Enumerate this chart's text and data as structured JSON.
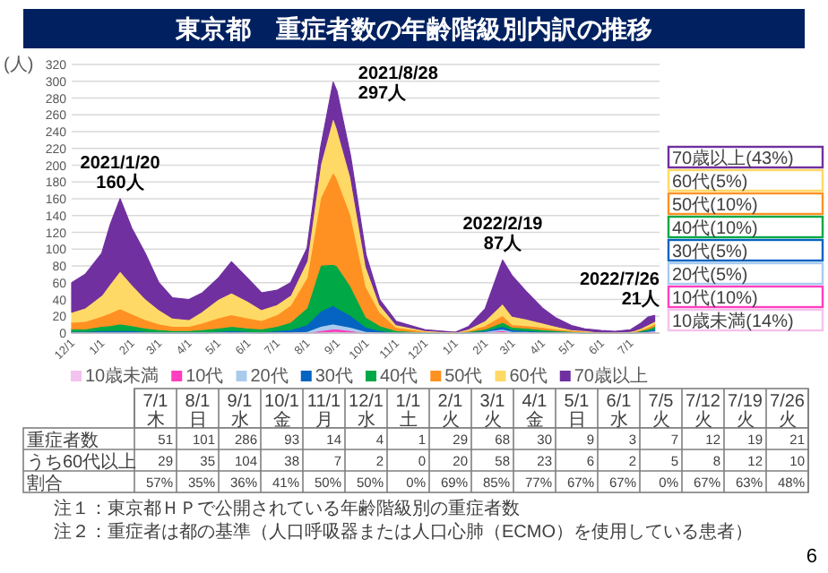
{
  "chart_data": [
    {
      "type": "area",
      "stacked": true,
      "title": "東京都　重症者数の年齢階級別内訳の推移",
      "ylabel": "(人)",
      "x": [
        "2020-12-01",
        "2020-12-15",
        "2021-01-01",
        "2021-01-10",
        "2021-01-20",
        "2021-02-01",
        "2021-02-15",
        "2021-03-01",
        "2021-03-15",
        "2021-04-01",
        "2021-04-15",
        "2021-05-01",
        "2021-05-15",
        "2021-06-01",
        "2021-06-15",
        "2021-07-01",
        "2021-07-15",
        "2021-08-01",
        "2021-08-15",
        "2021-08-28",
        "2021-09-01",
        "2021-09-15",
        "2021-10-01",
        "2021-10-15",
        "2021-11-01",
        "2021-12-01",
        "2022-01-01",
        "2022-01-15",
        "2022-02-01",
        "2022-02-19",
        "2022-03-01",
        "2022-03-15",
        "2022-04-01",
        "2022-04-15",
        "2022-05-01",
        "2022-05-15",
        "2022-06-01",
        "2022-06-15",
        "2022-07-01",
        "2022-07-05",
        "2022-07-12",
        "2022-07-19",
        "2022-07-26"
      ],
      "series": [
        {
          "name": "10歳未満",
          "color": "#f4c2ee",
          "values": [
            0,
            0,
            0,
            0,
            0,
            0,
            0,
            0,
            0,
            0,
            0,
            0,
            0,
            0,
            0,
            0,
            0,
            0,
            1,
            2,
            2,
            1,
            0,
            0,
            0,
            0,
            0,
            0,
            1,
            2,
            1,
            1,
            1,
            1,
            1,
            0,
            0,
            0,
            0,
            0,
            0,
            0,
            1
          ]
        },
        {
          "name": "10代",
          "color": "#ff3fbf",
          "values": [
            0,
            0,
            0,
            0,
            0,
            0,
            0,
            0,
            0,
            0,
            0,
            0,
            0,
            0,
            0,
            0,
            0,
            0,
            2,
            3,
            3,
            2,
            0,
            0,
            0,
            0,
            0,
            0,
            0,
            1,
            0,
            0,
            0,
            0,
            0,
            0,
            0,
            0,
            0,
            0,
            0,
            1,
            1
          ]
        },
        {
          "name": "20代",
          "color": "#a9cbee",
          "values": [
            1,
            1,
            1,
            1,
            1,
            1,
            1,
            0,
            0,
            0,
            0,
            1,
            1,
            1,
            0,
            1,
            1,
            2,
            5,
            6,
            5,
            4,
            2,
            1,
            0,
            0,
            0,
            0,
            1,
            2,
            1,
            1,
            0,
            0,
            0,
            0,
            0,
            0,
            0,
            0,
            1,
            1,
            1
          ]
        },
        {
          "name": "30代",
          "color": "#0563c1",
          "values": [
            1,
            1,
            2,
            2,
            2,
            2,
            1,
            1,
            1,
            1,
            1,
            1,
            2,
            1,
            1,
            2,
            3,
            8,
            18,
            22,
            20,
            14,
            5,
            2,
            1,
            0,
            0,
            1,
            1,
            3,
            2,
            1,
            1,
            1,
            0,
            0,
            0,
            0,
            0,
            1,
            1,
            1,
            2
          ]
        },
        {
          "name": "40代",
          "color": "#00a846",
          "values": [
            3,
            3,
            5,
            6,
            8,
            6,
            4,
            3,
            2,
            2,
            3,
            4,
            5,
            4,
            4,
            5,
            9,
            20,
            55,
            49,
            50,
            35,
            12,
            6,
            2,
            1,
            0,
            1,
            2,
            5,
            3,
            3,
            2,
            1,
            1,
            1,
            0,
            0,
            1,
            0,
            1,
            2,
            3
          ]
        },
        {
          "name": "50代",
          "color": "#ff9122",
          "values": [
            8,
            9,
            12,
            15,
            18,
            14,
            10,
            7,
            5,
            5,
            8,
            12,
            14,
            12,
            10,
            14,
            20,
            36,
            80,
            110,
            104,
            85,
            36,
            16,
            4,
            1,
            1,
            1,
            4,
            8,
            3,
            3,
            3,
            2,
            1,
            1,
            1,
            1,
            0,
            1,
            1,
            2,
            3
          ]
        },
        {
          "name": "60代",
          "color": "#ffd966",
          "values": [
            12,
            16,
            25,
            35,
            45,
            35,
            25,
            17,
            10,
            8,
            14,
            22,
            26,
            20,
            13,
            12,
            12,
            20,
            40,
            65,
            60,
            45,
            24,
            9,
            3,
            1,
            0,
            2,
            6,
            14,
            10,
            8,
            5,
            3,
            1,
            1,
            0,
            0,
            1,
            1,
            2,
            3,
            3
          ]
        },
        {
          "name": "70歳以上",
          "color": "#7030a0",
          "values": [
            35,
            40,
            50,
            71,
            86,
            67,
            54,
            32,
            24,
            24,
            22,
            25,
            37,
            27,
            20,
            17,
            15,
            15,
            20,
            42,
            44,
            25,
            14,
            6,
            4,
            1,
            0,
            3,
            14,
            52,
            48,
            33,
            18,
            10,
            5,
            2,
            2,
            1,
            2,
            4,
            6,
            9,
            7
          ]
        }
      ],
      "xlim": [
        "2020-12-01",
        "2022-07-31"
      ],
      "xticks": [
        {
          "value": "2020-12-01",
          "label": "12/1"
        },
        {
          "value": "2021-01-01",
          "label": "1/1"
        },
        {
          "value": "2021-02-01",
          "label": "2/1"
        },
        {
          "value": "2021-03-01",
          "label": "3/1"
        },
        {
          "value": "2021-04-01",
          "label": "4/1"
        },
        {
          "value": "2021-05-01",
          "label": "5/1"
        },
        {
          "value": "2021-06-01",
          "label": "6/1"
        },
        {
          "value": "2021-07-01",
          "label": "7/1"
        },
        {
          "value": "2021-08-01",
          "label": "8/1"
        },
        {
          "value": "2021-09-01",
          "label": "9/1"
        },
        {
          "value": "2021-10-01",
          "label": "10/1"
        },
        {
          "value": "2021-11-01",
          "label": "11/1"
        },
        {
          "value": "2021-12-01",
          "label": "12/1"
        },
        {
          "value": "2022-01-01",
          "label": "1/1"
        },
        {
          "value": "2022-02-01",
          "label": "2/1"
        },
        {
          "value": "2022-03-01",
          "label": "3/1"
        },
        {
          "value": "2022-04-01",
          "label": "4/1"
        },
        {
          "value": "2022-05-01",
          "label": "5/1"
        },
        {
          "value": "2022-06-01",
          "label": "6/1"
        },
        {
          "value": "2022-07-01",
          "label": "7/1"
        }
      ],
      "ylim": [
        0,
        320
      ],
      "yticks": [
        0,
        20,
        40,
        60,
        80,
        100,
        120,
        140,
        160,
        180,
        200,
        220,
        240,
        260,
        280,
        300,
        320
      ],
      "grid": "y",
      "legend": "bottom",
      "annotations": [
        {
          "text": "2021/1/20\n160人",
          "x": "2021-01-20",
          "y": 160
        },
        {
          "text": "2021/8/28\n297人",
          "x": "2021-08-28",
          "y": 297
        },
        {
          "text": "2022/2/19\n87人",
          "x": "2022-02-19",
          "y": 87
        },
        {
          "text": "2022/7/26\n21人",
          "x": "2022-07-26",
          "y": 21
        },
        "10歳未満(14%)",
        "10代(10%)",
        "20代(5%)",
        "30代(5%)",
        "40代(10%)",
        "50代(10%)",
        "60代(5%)",
        "70歳以上(43%)",
        "注１：東京都ＨＰで公開されている年齢階級別の重症者数",
        "注２：重症者は都の基準（人口呼吸器または人口心肺（ECMO）を使用している患者）",
        "6"
      ]
    },
    {
      "type": "other",
      "data_labels": true,
      "categories": [
        "7/1木",
        "8/1日",
        "9/1水",
        "10/1金",
        "11/1月",
        "12/1水",
        "1/1土",
        "2/1火",
        "3/1火",
        "4/1金",
        "5/1日",
        "6/1水",
        "7/5火",
        "7/12火",
        "7/19火",
        "7/26火"
      ],
      "series": [
        {
          "name": "重症者数",
          "values": [
            51,
            101,
            286,
            93,
            14,
            4,
            1,
            29,
            68,
            30,
            9,
            3,
            7,
            12,
            19,
            21
          ]
        },
        {
          "name": "うち60代以上",
          "values": [
            29,
            35,
            104,
            38,
            7,
            2,
            0,
            20,
            58,
            23,
            6,
            2,
            5,
            8,
            12,
            10
          ]
        },
        {
          "name": "割合",
          "values": [
            57,
            35,
            36,
            41,
            50,
            50,
            0,
            69,
            85,
            77,
            67,
            67,
            0,
            67,
            63,
            48
          ],
          "value_labels": [
            "57%",
            "35%",
            "36%",
            "41%",
            "50%",
            "50%",
            "0%",
            "69%",
            "85%",
            "77%",
            "67%",
            "67%",
            "0%",
            "67%",
            "63%",
            "48%"
          ]
        }
      ]
    }
  ]
}
